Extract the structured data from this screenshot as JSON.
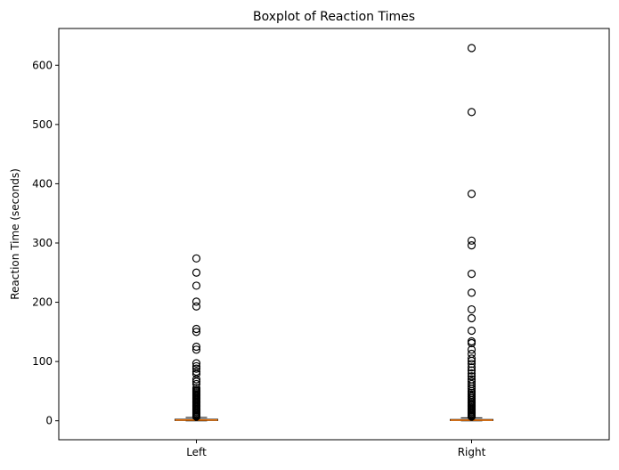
{
  "chart_data": {
    "type": "boxplot",
    "title": "Boxplot of Reaction Times",
    "xlabel": "",
    "ylabel": "Reaction Time (seconds)",
    "ylim": [
      -32,
      662
    ],
    "yticks": [
      0,
      100,
      200,
      300,
      400,
      500,
      600
    ],
    "grid": false,
    "legend": "none",
    "categories": [
      "Left",
      "Right"
    ],
    "colors": {
      "median": "#ff7f0e",
      "box": "#000000",
      "flier": "#000000"
    },
    "series": [
      {
        "category": "Left",
        "whisker_low": 0.0,
        "q1": 0.5,
        "median": 1.2,
        "q3": 2.5,
        "whisker_high": 5.5,
        "outliers": [
          274,
          250,
          228,
          201,
          193,
          155,
          150,
          125,
          120,
          97,
          92,
          88,
          83,
          79,
          70,
          66,
          62,
          55,
          52,
          50,
          48,
          46,
          44,
          42,
          40,
          38,
          36,
          34,
          32,
          30,
          28,
          26,
          24,
          22,
          20,
          18,
          16,
          14,
          12,
          10,
          8.5,
          7
        ]
      },
      {
        "category": "Right",
        "whisker_low": 0.0,
        "q1": 0.5,
        "median": 1.0,
        "q3": 2.2,
        "whisker_high": 5.0,
        "outliers": [
          629,
          521,
          383,
          304,
          296,
          248,
          216,
          188,
          173,
          152,
          134,
          131,
          120,
          113,
          105,
          101,
          96,
          90,
          85,
          80,
          75,
          70,
          66,
          62,
          58,
          54,
          50,
          47,
          44,
          41,
          38,
          35,
          32,
          30,
          28,
          26,
          24,
          22,
          20,
          18,
          16,
          14,
          12,
          10,
          8.5,
          7
        ]
      }
    ]
  }
}
